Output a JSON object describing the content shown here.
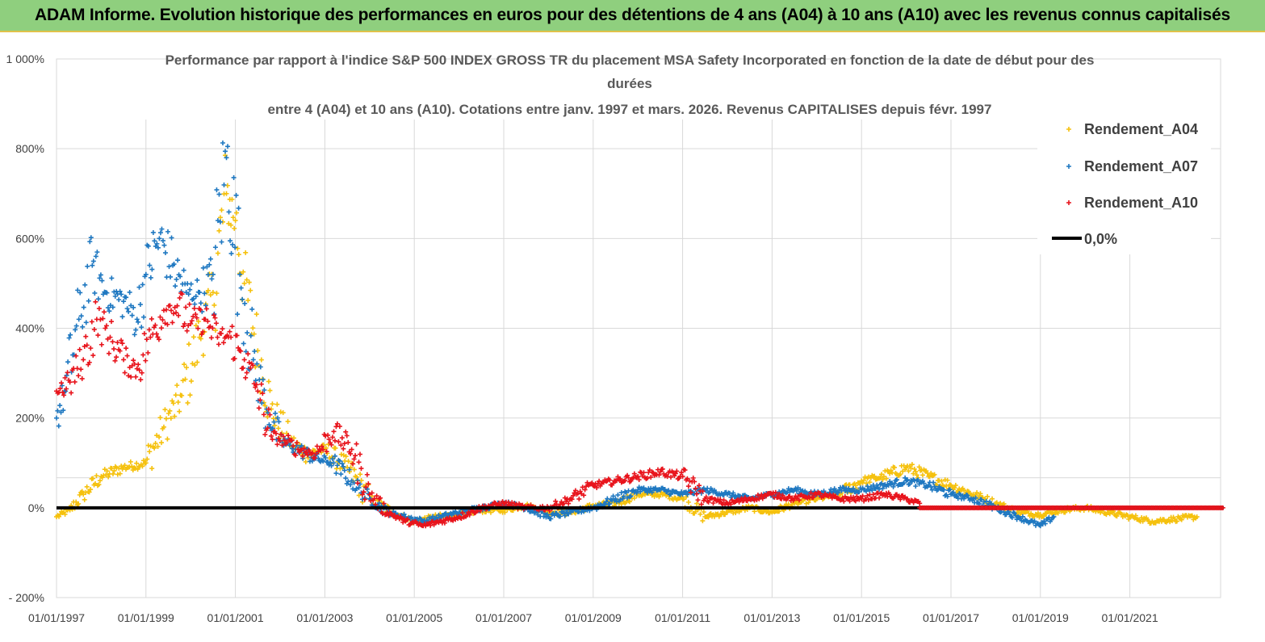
{
  "banner": {
    "title": "ADAM Informe. Evolution historique des performances en euros pour des détentions de 4 ans (A04) à 10 ans (A10) avec les revenus connus capitalisés"
  },
  "colors": {
    "banner_bg": "#8fcf7e",
    "a04": "#f5c10e",
    "a07": "#1f78c1",
    "a10": "#e8141c",
    "zero": "#000000",
    "grid": "#d9d9d9"
  },
  "chart_data": {
    "type": "scatter",
    "title_lines": [
      "Performance par rapport à l'indice S&P 500 INDEX GROSS TR  du placement MSA Safety Incorporated en fonction de la date de début pour des",
      "durées",
      "entre 4 (A04) et 10 ans (A10).  Cotations entre janv. 1997 et mars. 2026. Revenus CAPITALISES depuis févr. 1997"
    ],
    "xlabel": "",
    "ylabel": "",
    "x_range": [
      1997.0,
      2023.1
    ],
    "ylim": [
      -200,
      1000
    ],
    "y_ticks": [
      -200,
      0,
      200,
      400,
      600,
      800,
      1000
    ],
    "y_tick_labels": [
      "- 200%",
      "0%",
      "200%",
      "400%",
      "600%",
      "800%",
      "1 000%"
    ],
    "x_ticks": [
      1997,
      1999,
      2001,
      2003,
      2005,
      2007,
      2009,
      2011,
      2013,
      2015,
      2017,
      2019,
      2021
    ],
    "x_tick_labels": [
      "01/01/1997",
      "01/01/1999",
      "01/01/2001",
      "01/01/2003",
      "01/01/2005",
      "01/01/2007",
      "01/01/2009",
      "01/01/2011",
      "01/01/2013",
      "01/01/2015",
      "01/01/2017",
      "01/01/2019",
      "01/01/2021"
    ],
    "legend_position": "top-right",
    "series": [
      {
        "name": "Rendement_A04",
        "marker": "+",
        "x": [
          1997.0,
          1997.3,
          1997.6,
          1998.0,
          1998.5,
          1999.0,
          1999.4,
          1999.8,
          2000.2,
          2000.5,
          2000.8,
          2001.0,
          2001.2,
          2001.5,
          2001.8,
          2002.2,
          2002.6,
          2003.0,
          2003.5,
          2004.0,
          2004.5,
          2005.0,
          2005.5,
          2006.0,
          2006.5,
          2007.0,
          2007.5,
          2008.0,
          2008.5,
          2009.0,
          2009.5,
          2010.0,
          2010.5,
          2011.0,
          2011.5,
          2012.0,
          2012.5,
          2013.0,
          2013.5,
          2014.0,
          2014.5,
          2015.0,
          2015.5,
          2016.0,
          2016.5,
          2017.0,
          2017.5,
          2018.0,
          2018.5,
          2019.0,
          2019.5,
          2020.0,
          2020.5,
          2021.0,
          2021.5,
          2022.0,
          2022.5
        ],
        "y": [
          -20,
          -5,
          30,
          70,
          90,
          100,
          180,
          250,
          380,
          480,
          700,
          640,
          500,
          350,
          220,
          150,
          120,
          130,
          90,
          20,
          -10,
          -30,
          -20,
          -15,
          -5,
          -5,
          5,
          -10,
          -10,
          5,
          10,
          30,
          30,
          20,
          -20,
          -10,
          0,
          -10,
          10,
          20,
          30,
          60,
          70,
          90,
          70,
          50,
          30,
          10,
          -10,
          -15,
          -5,
          0,
          -10,
          -20,
          -30,
          -25,
          -20
        ]
      },
      {
        "name": "Rendement_A07",
        "marker": "+",
        "x": [
          1997.0,
          1997.2,
          1997.5,
          1997.8,
          1998.1,
          1998.5,
          1998.8,
          1999.0,
          1999.3,
          1999.6,
          1999.9,
          2000.2,
          2000.5,
          2000.8,
          2001.1,
          2001.4,
          2001.7,
          2002.0,
          2002.4,
          2002.8,
          2003.2,
          2003.6,
          2004.0,
          2004.4,
          2004.8,
          2005.2,
          2005.6,
          2006.0,
          2006.5,
          2007.0,
          2007.5,
          2008.0,
          2008.5,
          2009.0,
          2009.5,
          2010.0,
          2010.5,
          2011.0,
          2011.5,
          2012.0,
          2012.5,
          2013.0,
          2013.5,
          2014.0,
          2014.5,
          2015.0,
          2015.5,
          2016.0,
          2016.5,
          2017.0,
          2017.5,
          2018.0,
          2018.5,
          2019.0,
          2019.3
        ],
        "y": [
          200,
          260,
          420,
          540,
          480,
          460,
          420,
          520,
          600,
          540,
          480,
          480,
          520,
          780,
          520,
          330,
          220,
          150,
          130,
          110,
          100,
          60,
          20,
          -10,
          -20,
          -30,
          -20,
          -10,
          0,
          10,
          0,
          -20,
          -10,
          0,
          20,
          40,
          40,
          30,
          40,
          30,
          20,
          30,
          40,
          30,
          40,
          40,
          50,
          60,
          50,
          30,
          20,
          0,
          -20,
          -40,
          -20
        ]
      },
      {
        "name": "Rendement_A10",
        "marker": "+",
        "x": [
          1997.0,
          1997.3,
          1997.6,
          1997.9,
          1998.2,
          1998.5,
          1998.8,
          1999.1,
          1999.4,
          1999.7,
          2000.0,
          2000.3,
          2000.6,
          2000.9,
          2001.2,
          2001.5,
          2001.8,
          2002.1,
          2002.4,
          2002.8,
          2003.2,
          2003.6,
          2004.0,
          2004.4,
          2004.8,
          2005.2,
          2005.6,
          2006.0,
          2006.5,
          2007.0,
          2007.5,
          2008.0,
          2008.5,
          2009.0,
          2009.5,
          2010.0,
          2010.5,
          2011.0,
          2011.5,
          2012.0,
          2012.5,
          2013.0,
          2013.5,
          2014.0,
          2014.5,
          2015.0,
          2015.5,
          2016.0,
          2016.3
        ],
        "y": [
          260,
          280,
          330,
          420,
          380,
          330,
          310,
          380,
          440,
          450,
          410,
          420,
          380,
          380,
          330,
          260,
          160,
          150,
          130,
          120,
          170,
          130,
          30,
          -10,
          -30,
          -40,
          -30,
          -20,
          0,
          10,
          0,
          0,
          20,
          50,
          60,
          70,
          80,
          70,
          20,
          10,
          20,
          30,
          20,
          30,
          20,
          20,
          30,
          20,
          10
        ]
      },
      {
        "name": "0,0%",
        "marker": "line",
        "x": [
          1997.0,
          2023.1
        ],
        "y": [
          0,
          0
        ]
      }
    ]
  }
}
